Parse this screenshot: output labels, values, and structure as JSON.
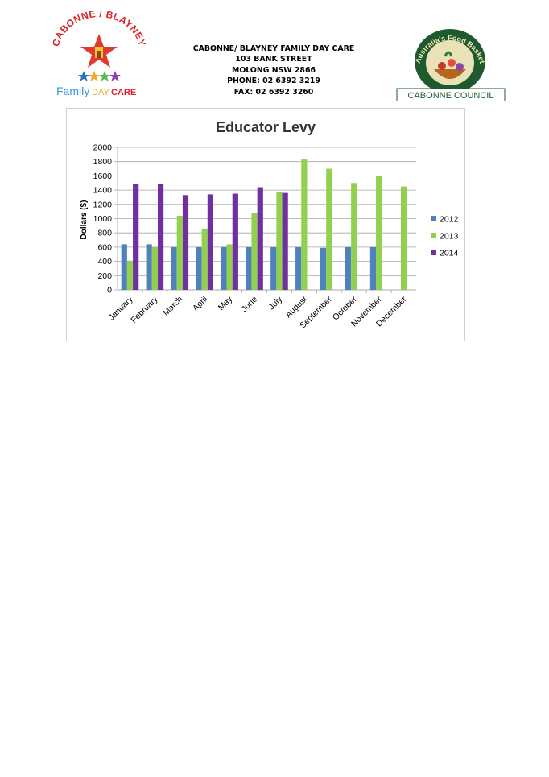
{
  "header": {
    "org_logo_text_top": "CABONNE / BLAYNEY",
    "org_logo_text_bottom_1": "Family",
    "org_logo_text_bottom_2": "DAY",
    "org_logo_text_bottom_3": "CARE",
    "address_lines": [
      "CABONNE/ BLAYNEY FAMILY DAY CARE",
      "103 BANK STREET",
      "MOLONG NSW 2866",
      "PHONE: 02 6392 3219",
      "FAX: 02 6392 3260"
    ],
    "council_logo_arc_text": "Australia's Food Basket",
    "council_logo_name": "CABONNE COUNCIL"
  },
  "colors": {
    "2012": "#4f81bd",
    "2013": "#92d050",
    "2014": "#7030a0",
    "grid": "#a6a6a6",
    "star_red": "#e03a2f",
    "council_green": "#1f5a2e"
  },
  "chart_data": {
    "type": "bar",
    "title": "Educator Levy",
    "xlabel": "",
    "ylabel": "Dollars ($)",
    "ylim": [
      0,
      2000
    ],
    "yticks": [
      0,
      200,
      400,
      600,
      800,
      1000,
      1200,
      1400,
      1600,
      1800,
      2000
    ],
    "grid": true,
    "legend_position": "right",
    "categories": [
      "January",
      "February",
      "March",
      "April",
      "May",
      "June",
      "July",
      "August",
      "September",
      "October",
      "November",
      "December"
    ],
    "series": [
      {
        "name": "2012",
        "values": [
          640,
          640,
          600,
          600,
          600,
          600,
          600,
          600,
          590,
          600,
          600,
          null
        ]
      },
      {
        "name": "2013",
        "values": [
          410,
          600,
          1040,
          860,
          640,
          1080,
          1370,
          1830,
          1700,
          1500,
          1600,
          1450
        ]
      },
      {
        "name": "2014",
        "values": [
          1490,
          1490,
          1330,
          1340,
          1350,
          1440,
          1360,
          null,
          null,
          null,
          null,
          null
        ]
      }
    ]
  }
}
